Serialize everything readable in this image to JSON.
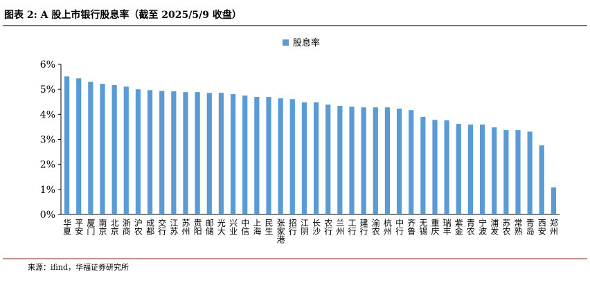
{
  "chart_data": {
    "type": "bar",
    "title": "图表 2:  A 股上市银行股息率（截至 2025/5/9 收盘）",
    "source": "来源：ifind，华福证券研究所",
    "categories": [
      "华夏",
      "平安",
      "厦门",
      "南京",
      "北京",
      "浙商",
      "沪农",
      "成都",
      "交行",
      "江苏",
      "苏州",
      "贵阳",
      "邮储",
      "光大",
      "兴业",
      "中信",
      "上海",
      "民生",
      "张家港",
      "招行",
      "江阴",
      "长沙",
      "农行",
      "兰州",
      "工行",
      "建行",
      "渝农",
      "杭州",
      "中行",
      "齐鲁",
      "无锡",
      "重庆",
      "瑞丰",
      "紫金",
      "青农",
      "宁波",
      "浦发",
      "苏农",
      "常熟",
      "青岛",
      "西安",
      "郑州"
    ],
    "series": [
      {
        "name": "股息率",
        "color": "#5b9bd5",
        "values": [
          5.52,
          5.44,
          5.3,
          5.22,
          5.17,
          5.11,
          5.0,
          4.97,
          4.94,
          4.92,
          4.89,
          4.89,
          4.86,
          4.86,
          4.81,
          4.75,
          4.7,
          4.7,
          4.64,
          4.61,
          4.48,
          4.48,
          4.39,
          4.34,
          4.31,
          4.28,
          4.28,
          4.28,
          4.23,
          4.17,
          3.9,
          3.78,
          3.76,
          3.62,
          3.59,
          3.59,
          3.48,
          3.37,
          3.37,
          3.31,
          2.76,
          1.08
        ]
      }
    ],
    "ylim": [
      0,
      6
    ],
    "yticks": [
      {
        "value": 0,
        "label": "0%"
      },
      {
        "value": 1,
        "label": "1%"
      },
      {
        "value": 2,
        "label": "2%"
      },
      {
        "value": 3,
        "label": "3%"
      },
      {
        "value": 4,
        "label": "4%"
      },
      {
        "value": 5,
        "label": "5%"
      },
      {
        "value": 6,
        "label": "6%"
      }
    ],
    "legend": "top"
  }
}
